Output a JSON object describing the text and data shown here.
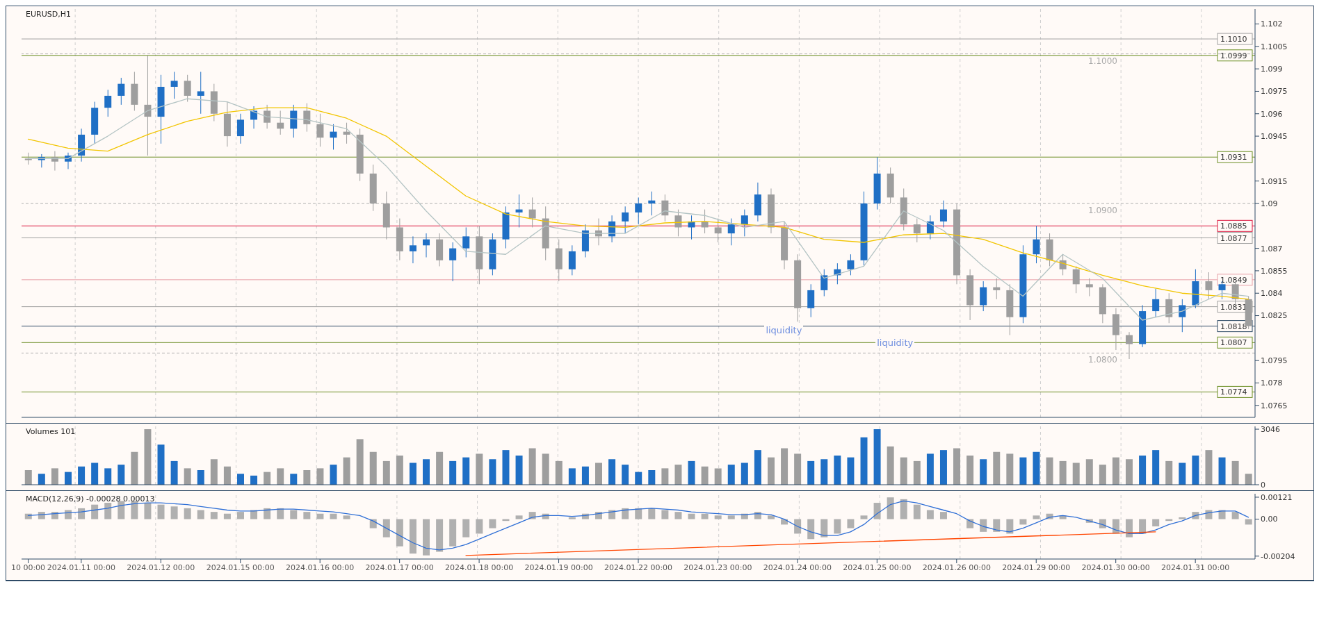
{
  "chart_data": [
    {
      "type": "candlestick",
      "title": "EURUSD,H1",
      "categories": [
        null,
        null,
        null,
        null,
        null,
        null,
        null,
        null,
        null,
        null,
        null,
        null,
        null,
        null,
        null,
        null,
        null,
        null,
        null,
        null,
        null,
        null,
        null,
        null,
        null,
        null,
        null,
        null,
        null,
        null,
        null,
        null,
        null,
        null,
        null,
        null,
        null,
        null,
        null,
        null,
        null,
        null,
        null,
        null,
        null,
        null,
        null,
        null,
        null,
        null,
        null,
        null,
        null,
        null,
        null,
        null,
        null,
        null,
        null,
        null,
        null,
        null,
        null,
        null,
        null,
        null,
        null,
        null,
        null,
        null,
        null,
        null,
        null,
        null,
        null,
        null,
        null,
        null,
        null,
        null,
        null,
        null,
        null,
        null,
        null,
        null,
        null,
        null,
        null,
        null,
        null,
        null,
        null
      ],
      "ohlc": [
        [
          1.093,
          1.0934,
          1.0926,
          1.0929
        ],
        [
          1.0929,
          1.0933,
          1.0924,
          1.0931
        ],
        [
          1.0931,
          1.0935,
          1.0922,
          1.0928
        ],
        [
          1.0928,
          1.0934,
          1.0923,
          1.0932
        ],
        [
          1.0932,
          1.095,
          1.0928,
          1.0946
        ],
        [
          1.0946,
          1.0968,
          1.094,
          1.0964
        ],
        [
          1.0964,
          1.0976,
          1.0958,
          1.0972
        ],
        [
          1.0972,
          1.0984,
          1.0966,
          1.098
        ],
        [
          1.098,
          1.0988,
          1.0962,
          1.0966
        ],
        [
          1.0966,
          1.0999,
          1.0932,
          1.0958
        ],
        [
          1.0958,
          1.0986,
          1.094,
          1.0978
        ],
        [
          1.0978,
          1.0988,
          1.097,
          1.0982
        ],
        [
          1.0982,
          1.0986,
          1.0968,
          1.0972
        ],
        [
          1.0972,
          1.0988,
          1.096,
          1.0975
        ],
        [
          1.0975,
          1.098,
          1.0955,
          1.096
        ],
        [
          1.096,
          1.0968,
          1.0938,
          1.0945
        ],
        [
          1.0945,
          1.096,
          1.094,
          1.0956
        ],
        [
          1.0956,
          1.0965,
          1.095,
          1.0962
        ],
        [
          1.0962,
          1.0966,
          1.095,
          1.0954
        ],
        [
          1.0954,
          1.0962,
          1.0946,
          1.095
        ],
        [
          1.095,
          1.0966,
          1.0944,
          1.0962
        ],
        [
          1.0962,
          1.0967,
          1.0948,
          1.0953
        ],
        [
          1.0953,
          1.096,
          1.0938,
          1.0944
        ],
        [
          1.0944,
          1.0953,
          1.0936,
          1.0948
        ],
        [
          1.0948,
          1.0954,
          1.094,
          1.0946
        ],
        [
          1.0946,
          1.095,
          1.0915,
          1.092
        ],
        [
          1.092,
          1.0926,
          1.0895,
          1.09
        ],
        [
          1.09,
          1.0908,
          1.0876,
          1.0884
        ],
        [
          1.0884,
          1.089,
          1.0862,
          1.0868
        ],
        [
          1.0868,
          1.0878,
          1.086,
          1.0872
        ],
        [
          1.0872,
          1.088,
          1.0864,
          1.0876
        ],
        [
          1.0876,
          1.088,
          1.0858,
          1.0862
        ],
        [
          1.0862,
          1.0874,
          1.0848,
          1.087
        ],
        [
          1.087,
          1.0884,
          1.0864,
          1.0878
        ],
        [
          1.0878,
          1.0885,
          1.0846,
          1.0856
        ],
        [
          1.0856,
          1.088,
          1.0852,
          1.0876
        ],
        [
          1.0876,
          1.0898,
          1.087,
          1.0894
        ],
        [
          1.0894,
          1.0906,
          1.0884,
          1.0896
        ],
        [
          1.0896,
          1.0904,
          1.0884,
          1.089
        ],
        [
          1.089,
          1.0898,
          1.0862,
          1.087
        ],
        [
          1.087,
          1.0876,
          1.0848,
          1.0856
        ],
        [
          1.0856,
          1.0872,
          1.0852,
          1.0868
        ],
        [
          1.0868,
          1.0886,
          1.0864,
          1.0882
        ],
        [
          1.0882,
          1.089,
          1.0872,
          1.0878
        ],
        [
          1.0878,
          1.0892,
          1.0874,
          1.0888
        ],
        [
          1.0888,
          1.0898,
          1.088,
          1.0894
        ],
        [
          1.0894,
          1.0904,
          1.0886,
          1.09
        ],
        [
          1.09,
          1.0908,
          1.0892,
          1.0902
        ],
        [
          1.0902,
          1.0906,
          1.0888,
          1.0892
        ],
        [
          1.0892,
          1.0896,
          1.0878,
          1.0884
        ],
        [
          1.0884,
          1.0892,
          1.0876,
          1.0888
        ],
        [
          1.0888,
          1.0896,
          1.088,
          1.0884
        ],
        [
          1.0884,
          1.089,
          1.0874,
          1.088
        ],
        [
          1.088,
          1.089,
          1.0872,
          1.0886
        ],
        [
          1.0886,
          1.0896,
          1.0878,
          1.0892
        ],
        [
          1.0892,
          1.0914,
          1.0888,
          1.0906
        ],
        [
          1.0906,
          1.091,
          1.088,
          1.0884
        ],
        [
          1.0884,
          1.0888,
          1.0856,
          1.0862
        ],
        [
          1.0862,
          1.0866,
          1.0821,
          1.083
        ],
        [
          1.083,
          1.0846,
          1.0824,
          1.0842
        ],
        [
          1.0842,
          1.0856,
          1.0838,
          1.0852
        ],
        [
          1.0852,
          1.086,
          1.0846,
          1.0856
        ],
        [
          1.0856,
          1.0866,
          1.0852,
          1.0862
        ],
        [
          1.0862,
          1.0908,
          1.0858,
          1.09
        ],
        [
          1.09,
          1.0931,
          1.0896,
          1.092
        ],
        [
          1.092,
          1.0924,
          1.09,
          1.0904
        ],
        [
          1.0904,
          1.091,
          1.0882,
          1.0886
        ],
        [
          1.0886,
          1.089,
          1.0874,
          1.088
        ],
        [
          1.088,
          1.0892,
          1.0876,
          1.0888
        ],
        [
          1.0888,
          1.0902,
          1.0884,
          1.0896
        ],
        [
          1.0896,
          1.09,
          1.0846,
          1.0852
        ],
        [
          1.0852,
          1.0856,
          1.0822,
          1.0832
        ],
        [
          1.0832,
          1.0848,
          1.0828,
          1.0844
        ],
        [
          1.0844,
          1.085,
          1.0836,
          1.0842
        ],
        [
          1.0842,
          1.0846,
          1.0812,
          1.0824
        ],
        [
          1.0824,
          1.0872,
          1.082,
          1.0866
        ],
        [
          1.0866,
          1.0885,
          1.086,
          1.0876
        ],
        [
          1.0876,
          1.088,
          1.0858,
          1.0862
        ],
        [
          1.0862,
          1.0866,
          1.0852,
          1.0856
        ],
        [
          1.0856,
          1.0858,
          1.084,
          1.0846
        ],
        [
          1.0846,
          1.085,
          1.0838,
          1.0844
        ],
        [
          1.0844,
          1.0846,
          1.082,
          1.0826
        ],
        [
          1.0826,
          1.083,
          1.0802,
          1.0812
        ],
        [
          1.0812,
          1.0814,
          1.0796,
          1.0806
        ],
        [
          1.0806,
          1.0832,
          1.0804,
          1.0828
        ],
        [
          1.0828,
          1.0843,
          1.0824,
          1.0836
        ],
        [
          1.0836,
          1.084,
          1.082,
          1.0824
        ],
        [
          1.0824,
          1.0836,
          1.0814,
          1.0832
        ],
        [
          1.0832,
          1.0856,
          1.083,
          1.0848
        ],
        [
          1.0848,
          1.0854,
          1.0836,
          1.0842
        ],
        [
          1.0842,
          1.0848,
          1.0836,
          1.0846
        ],
        [
          1.0846,
          1.0848,
          1.083,
          1.0836
        ],
        [
          1.0836,
          1.0838,
          1.0816,
          1.0818
        ]
      ],
      "colors": [
        "#9e9e9e",
        "#1f6fc5",
        "#9e9e9e",
        "#1f6fc5",
        "#1f6fc5",
        "#1f6fc5",
        "#1f6fc5",
        "#1f6fc5",
        "#9e9e9e",
        "#9e9e9e",
        "#1f6fc5",
        "#1f6fc5",
        "#9e9e9e",
        "#1f6fc5",
        "#9e9e9e",
        "#9e9e9e",
        "#1f6fc5",
        "#1f6fc5",
        "#9e9e9e",
        "#9e9e9e",
        "#1f6fc5",
        "#9e9e9e",
        "#9e9e9e",
        "#1f6fc5",
        "#9e9e9e",
        "#9e9e9e",
        "#9e9e9e",
        "#9e9e9e",
        "#9e9e9e",
        "#1f6fc5",
        "#1f6fc5",
        "#9e9e9e",
        "#1f6fc5",
        "#1f6fc5",
        "#9e9e9e",
        "#1f6fc5",
        "#1f6fc5",
        "#1f6fc5",
        "#9e9e9e",
        "#9e9e9e",
        "#9e9e9e",
        "#1f6fc5",
        "#1f6fc5",
        "#9e9e9e",
        "#1f6fc5",
        "#1f6fc5",
        "#1f6fc5",
        "#1f6fc5",
        "#9e9e9e",
        "#9e9e9e",
        "#1f6fc5",
        "#9e9e9e",
        "#9e9e9e",
        "#1f6fc5",
        "#1f6fc5",
        "#1f6fc5",
        "#9e9e9e",
        "#9e9e9e",
        "#9e9e9e",
        "#1f6fc5",
        "#1f6fc5",
        "#1f6fc5",
        "#1f6fc5",
        "#1f6fc5",
        "#1f6fc5",
        "#9e9e9e",
        "#9e9e9e",
        "#9e9e9e",
        "#1f6fc5",
        "#1f6fc5",
        "#9e9e9e",
        "#9e9e9e",
        "#1f6fc5",
        "#9e9e9e",
        "#9e9e9e",
        "#1f6fc5",
        "#1f6fc5",
        "#9e9e9e",
        "#9e9e9e",
        "#9e9e9e",
        "#9e9e9e",
        "#9e9e9e",
        "#9e9e9e",
        "#9e9e9e",
        "#1f6fc5",
        "#1f6fc5",
        "#9e9e9e",
        "#1f6fc5",
        "#1f6fc5",
        "#9e9e9e",
        "#1f6fc5",
        "#9e9e9e",
        "#9e9e9e"
      ],
      "series": [
        {
          "type": "line",
          "color": "#f2c500",
          "values": [
            1.0943,
            null,
            null,
            1.0937,
            null,
            null,
            1.0935,
            null,
            null,
            1.0946,
            null,
            null,
            1.0955,
            null,
            null,
            1.0961,
            null,
            null,
            1.0964,
            null,
            null,
            1.0964,
            null,
            null,
            1.0957,
            null,
            null,
            1.0945,
            null,
            null,
            1.0925,
            null,
            null,
            1.0905,
            null,
            null,
            1.0893,
            null,
            null,
            1.0888,
            null,
            null,
            1.0885,
            null,
            null,
            1.0884,
            null,
            null,
            1.0887,
            null,
            null,
            1.0888,
            null,
            null,
            1.0886,
            null,
            null,
            1.0884,
            null,
            null,
            1.0876,
            null,
            null,
            1.0874,
            null,
            null,
            1.0879,
            null,
            null,
            1.088,
            null,
            null,
            1.0876,
            null,
            null,
            1.0867,
            null,
            null,
            1.086,
            null,
            null,
            1.0852,
            null,
            null,
            1.0845,
            null,
            null,
            1.084,
            null,
            null,
            1.0838,
            null,
            1.0836
          ]
        },
        {
          "type": "line",
          "color": "#b4c4c4",
          "values": [
            1.093,
            null,
            null,
            1.093,
            null,
            null,
            1.0945,
            null,
            null,
            1.0962,
            null,
            null,
            1.097,
            null,
            null,
            1.0968,
            null,
            null,
            1.0958,
            null,
            null,
            1.0956,
            null,
            null,
            1.095,
            null,
            null,
            1.0925,
            null,
            null,
            1.0895,
            null,
            null,
            1.0868,
            null,
            null,
            1.0866,
            null,
            null,
            1.0885,
            null,
            null,
            1.088,
            null,
            null,
            1.088,
            null,
            null,
            1.0895,
            null,
            null,
            1.0892,
            null,
            null,
            1.0884,
            null,
            null,
            1.0888,
            null,
            null,
            1.085,
            null,
            null,
            1.0858,
            null,
            null,
            1.0895,
            null,
            null,
            1.0882,
            null,
            null,
            1.0858,
            null,
            null,
            1.0838,
            null,
            null,
            1.0866,
            null,
            null,
            1.085,
            null,
            null,
            1.0822,
            null,
            null,
            1.0828,
            null,
            null,
            1.084,
            null,
            1.0838
          ]
        }
      ],
      "ylim": [
        1.0757,
        1.103
      ],
      "yticks": [
        1.102,
        1.1005,
        1.099,
        1.0975,
        1.096,
        1.0945,
        1.0915,
        1.09,
        1.087,
        1.0855,
        1.084,
        1.0825,
        1.0795,
        1.078,
        1.0765
      ],
      "tick_labels": "y",
      "grid": "x",
      "ref_lines": [
        {
          "axis": "y",
          "value": 1.101,
          "label": "1.1010",
          "color": "#a0a0a0",
          "line_style": "solid"
        },
        {
          "axis": "y",
          "value": 1.0999,
          "label": "1.0999",
          "color": "#6b8e23",
          "line_style": "solid"
        },
        {
          "axis": "y",
          "value": 1.1,
          "label": "1.1000",
          "color": "#b0b0b0",
          "line_style": "dashed"
        },
        {
          "axis": "y",
          "value": 1.0931,
          "label": "1.0931",
          "color": "#6b8e23",
          "line_style": "solid"
        },
        {
          "axis": "y",
          "value": 1.09,
          "label": "1.0900",
          "color": "#b0b0b0",
          "line_style": "dashed"
        },
        {
          "axis": "y",
          "value": 1.0885,
          "label": "1.0885",
          "color": "#dc143c",
          "line_style": "solid"
        },
        {
          "axis": "y",
          "value": 1.0877,
          "label": "1.0877",
          "color": "#a0a0a0",
          "line_style": "solid"
        },
        {
          "axis": "y",
          "value": 1.0849,
          "label": "1.0849",
          "color": "#e8a0a8",
          "line_style": "solid"
        },
        {
          "axis": "y",
          "value": 1.0831,
          "label": "1.0831",
          "color": "#a0a0a0",
          "line_style": "solid"
        },
        {
          "axis": "y",
          "value": 1.0818,
          "label": "1.0818",
          "color": "#2e4a66",
          "line_style": "solid"
        },
        {
          "axis": "y",
          "value": 1.0807,
          "label": "1.0807",
          "color": "#6b8e23",
          "line_style": "solid"
        },
        {
          "axis": "y",
          "value": 1.08,
          "label": "1.0800",
          "color": "#b0b0b0",
          "line_style": "dashed"
        },
        {
          "axis": "y",
          "value": 1.0774,
          "label": "1.0774",
          "color": "#6b8e23",
          "line_style": "solid"
        }
      ],
      "annotations": [
        "liquidity",
        "liquidity"
      ]
    },
    {
      "type": "bar",
      "title": "Volumes 101",
      "categories": [
        null,
        null,
        null,
        null,
        null,
        null,
        null,
        null,
        null,
        null,
        null,
        null,
        null,
        null,
        null,
        null,
        null,
        null,
        null,
        null,
        null,
        null,
        null,
        null,
        null,
        null,
        null,
        null,
        null,
        null,
        null,
        null,
        null,
        null,
        null,
        null,
        null,
        null,
        null,
        null,
        null,
        null,
        null,
        null,
        null,
        null,
        null,
        null,
        null,
        null,
        null,
        null,
        null,
        null,
        null,
        null,
        null,
        null,
        null,
        null,
        null,
        null,
        null,
        null,
        null,
        null,
        null,
        null,
        null,
        null,
        null,
        null,
        null,
        null,
        null,
        null,
        null,
        null,
        null,
        null,
        null,
        null,
        null,
        null,
        null,
        null,
        null,
        null,
        null,
        null,
        null,
        null,
        null
      ],
      "values": [
        800,
        600,
        900,
        700,
        1000,
        1200,
        900,
        1100,
        1800,
        3046,
        2200,
        1300,
        900,
        800,
        1400,
        1000,
        600,
        500,
        700,
        900,
        600,
        800,
        900,
        1100,
        1500,
        2500,
        1800,
        1300,
        1600,
        1200,
        1400,
        1800,
        1300,
        1500,
        1700,
        1400,
        1900,
        1600,
        2000,
        1700,
        1300,
        900,
        1000,
        1200,
        1400,
        1100,
        700,
        800,
        900,
        1100,
        1300,
        1000,
        900,
        1100,
        1200,
        1900,
        1500,
        2000,
        1700,
        1300,
        1400,
        1600,
        1500,
        2600,
        3046,
        2100,
        1500,
        1300,
        1700,
        1900,
        2000,
        1600,
        1400,
        1800,
        1700,
        1500,
        1800,
        1500,
        1300,
        1200,
        1400,
        1100,
        1500,
        1400,
        1600,
        1900,
        1300,
        1200,
        1600,
        1900,
        1500,
        1300,
        600
      ],
      "colors": [
        "#9e9e9e",
        "#1f6fc5",
        "#9e9e9e",
        "#1f6fc5",
        "#1f6fc5",
        "#1f6fc5",
        "#1f6fc5",
        "#1f6fc5",
        "#9e9e9e",
        "#9e9e9e",
        "#1f6fc5",
        "#1f6fc5",
        "#9e9e9e",
        "#1f6fc5",
        "#9e9e9e",
        "#9e9e9e",
        "#1f6fc5",
        "#1f6fc5",
        "#9e9e9e",
        "#9e9e9e",
        "#1f6fc5",
        "#9e9e9e",
        "#9e9e9e",
        "#1f6fc5",
        "#9e9e9e",
        "#9e9e9e",
        "#9e9e9e",
        "#9e9e9e",
        "#9e9e9e",
        "#1f6fc5",
        "#1f6fc5",
        "#9e9e9e",
        "#1f6fc5",
        "#1f6fc5",
        "#9e9e9e",
        "#1f6fc5",
        "#1f6fc5",
        "#1f6fc5",
        "#9e9e9e",
        "#9e9e9e",
        "#9e9e9e",
        "#1f6fc5",
        "#1f6fc5",
        "#9e9e9e",
        "#1f6fc5",
        "#1f6fc5",
        "#1f6fc5",
        "#1f6fc5",
        "#9e9e9e",
        "#9e9e9e",
        "#1f6fc5",
        "#9e9e9e",
        "#9e9e9e",
        "#1f6fc5",
        "#1f6fc5",
        "#1f6fc5",
        "#9e9e9e",
        "#9e9e9e",
        "#9e9e9e",
        "#1f6fc5",
        "#1f6fc5",
        "#1f6fc5",
        "#1f6fc5",
        "#1f6fc5",
        "#1f6fc5",
        "#9e9e9e",
        "#9e9e9e",
        "#9e9e9e",
        "#1f6fc5",
        "#1f6fc5",
        "#9e9e9e",
        "#9e9e9e",
        "#1f6fc5",
        "#9e9e9e",
        "#9e9e9e",
        "#1f6fc5",
        "#1f6fc5",
        "#9e9e9e",
        "#9e9e9e",
        "#9e9e9e",
        "#9e9e9e",
        "#9e9e9e",
        "#9e9e9e",
        "#9e9e9e",
        "#1f6fc5",
        "#1f6fc5",
        "#9e9e9e",
        "#1f6fc5",
        "#1f6fc5",
        "#9e9e9e",
        "#1f6fc5",
        "#9e9e9e",
        "#9e9e9e"
      ],
      "ylim": [
        0,
        3200
      ],
      "yticks": [
        0,
        3046
      ],
      "tick_labels": "y",
      "grid": "x"
    },
    {
      "type": "bar",
      "title": "MACD(12,26,9) -0.00028 0.00013",
      "categories": [
        "10 00:00",
        null,
        null,
        null,
        "2024.01.11 00:00",
        null,
        null,
        null,
        null,
        null,
        "2024.01.12 00:00",
        null,
        null,
        null,
        null,
        null,
        "2024.01.15 00:00",
        null,
        null,
        null,
        null,
        null,
        "2024.01.16 00:00",
        null,
        null,
        null,
        null,
        null,
        "2024.01.17 00:00",
        null,
        null,
        null,
        null,
        null,
        "2024.01.18 00:00",
        null,
        null,
        null,
        null,
        null,
        "2024.01.19 00:00",
        null,
        null,
        null,
        null,
        null,
        "2024.01.22 00:00",
        null,
        null,
        null,
        null,
        null,
        "2024.01.23 00:00",
        null,
        null,
        null,
        null,
        null,
        "2024.01.24 00:00",
        null,
        null,
        null,
        null,
        null,
        "2024.01.25 00:00",
        null,
        null,
        null,
        null,
        null,
        "2024.01.26 00:00",
        null,
        null,
        null,
        null,
        null,
        "2024.01.29 00:00",
        null,
        null,
        null,
        null,
        null,
        "2024.01.30 00:00",
        null,
        null,
        null,
        null,
        null,
        "2024.01.31 00:00",
        null,
        null,
        null,
        null
      ],
      "series": [
        {
          "type": "bar",
          "color": "#b0b0b0",
          "values": [
            0.0003,
            0.0004,
            0.0004,
            0.0005,
            0.0006,
            0.0008,
            0.0009,
            0.001,
            0.001,
            0.0009,
            0.0008,
            0.0007,
            0.0006,
            0.0005,
            0.0004,
            0.0003,
            0.0004,
            0.0005,
            0.0006,
            0.0006,
            0.0005,
            0.0004,
            0.0003,
            0.0003,
            0.0002,
            0,
            -0.0005,
            -0.001,
            -0.0015,
            -0.0019,
            -0.002,
            -0.0018,
            -0.0015,
            -0.001,
            -0.0008,
            -0.0005,
            -0.0001,
            0.0002,
            0.0004,
            0.0003,
            0,
            0.0001,
            0.0003,
            0.0004,
            0.0005,
            0.0006,
            0.0006,
            0.0006,
            0.0005,
            0.0004,
            0.0003,
            0.0003,
            0.0002,
            0.0002,
            0.0003,
            0.0004,
            0.0002,
            -0.0003,
            -0.0008,
            -0.0011,
            -0.001,
            -0.0008,
            -0.0005,
            0.0002,
            0.0009,
            0.0012,
            0.0011,
            0.0008,
            0.0005,
            0.0004,
            0,
            -0.0005,
            -0.0007,
            -0.0007,
            -0.0008,
            -0.0003,
            0.0002,
            0.0003,
            0.0002,
            0,
            -0.0002,
            -0.0005,
            -0.0008,
            -0.001,
            -0.0008,
            -0.0004,
            -0.0001,
            0.0001,
            0.0004,
            0.0005,
            0.0005,
            0.0004,
            -0.0003
          ]
        },
        {
          "type": "line",
          "color": "#2f6fd6",
          "values": [
            0.0002,
            0.00025,
            0.0003,
            0.00035,
            0.0004,
            0.0005,
            0.0006,
            0.00075,
            0.00085,
            0.0009,
            0.0009,
            0.00085,
            0.0008,
            0.0007,
            0.0006,
            0.0005,
            0.00045,
            0.00045,
            0.0005,
            0.00055,
            0.00055,
            0.0005,
            0.00045,
            0.0004,
            0.0003,
            0.0002,
            -0.0001,
            -0.0005,
            -0.0009,
            -0.0013,
            -0.0016,
            -0.0017,
            -0.0016,
            -0.0014,
            -0.0011,
            -0.0008,
            -0.0005,
            -0.0002,
            0.0001,
            0.0002,
            0.0002,
            0.00015,
            0.0002,
            0.0003,
            0.0004,
            0.0005,
            0.00055,
            0.0006,
            0.00055,
            0.0005,
            0.0004,
            0.00035,
            0.0003,
            0.00025,
            0.00025,
            0.0003,
            0.00025,
            0,
            -0.0004,
            -0.0007,
            -0.0009,
            -0.0009,
            -0.0007,
            -0.0003,
            0.0003,
            0.0008,
            0.001,
            0.0009,
            0.0007,
            0.0005,
            0.0003,
            -0.0001,
            -0.0004,
            -0.0006,
            -0.0007,
            -0.0005,
            -0.0002,
            0.0001,
            0.0002,
            0.0001,
            -0.0001,
            -0.0003,
            -0.0006,
            -0.0008,
            -0.0008,
            -0.0006,
            -0.0003,
            -0.0001,
            0.0002,
            0.00035,
            0.00045,
            0.00045,
            0.0001
          ]
        },
        {
          "type": "line",
          "color": "#ff4500",
          "values": [
            null,
            null,
            null,
            null,
            null,
            null,
            null,
            null,
            null,
            null,
            null,
            null,
            null,
            null,
            null,
            null,
            null,
            null,
            null,
            null,
            null,
            null,
            null,
            null,
            null,
            null,
            null,
            null,
            null,
            null,
            null,
            null,
            null,
            -0.002,
            null,
            null,
            null,
            null,
            null,
            null,
            null,
            null,
            null,
            null,
            null,
            null,
            null,
            null,
            null,
            null,
            null,
            null,
            null,
            null,
            null,
            null,
            null,
            null,
            null,
            null,
            null,
            null,
            null,
            null,
            null,
            null,
            null,
            null,
            null,
            null,
            null,
            null,
            null,
            null,
            null,
            null,
            null,
            null,
            null,
            null,
            null,
            null,
            null,
            null,
            null,
            -0.0007,
            null,
            null,
            null,
            null,
            null,
            null,
            null
          ]
        }
      ],
      "ylim": [
        -0.0022,
        0.0014
      ],
      "yticks": [
        0.00121,
        {
          "value": 0,
          "label": "0.00"
        },
        -0.00204
      ],
      "grid": "x"
    }
  ]
}
